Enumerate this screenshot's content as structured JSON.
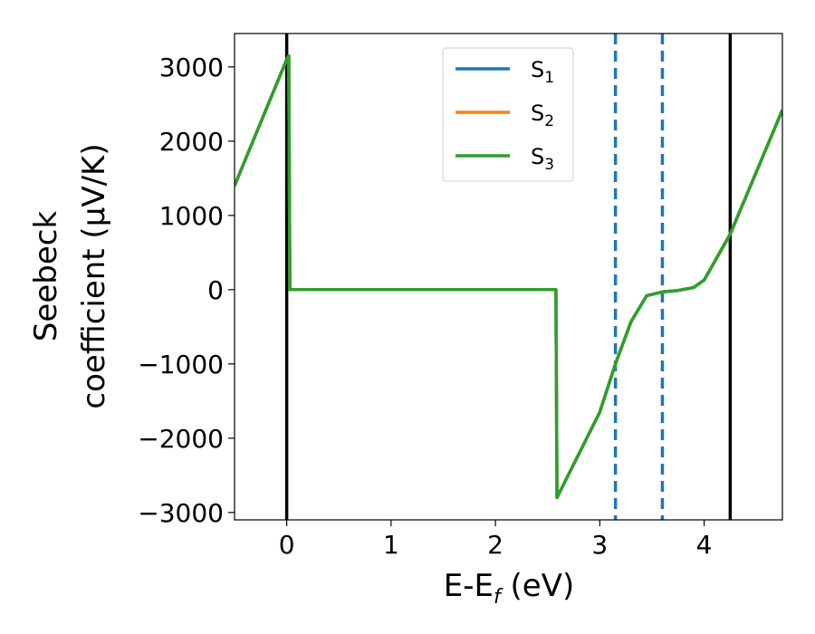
{
  "chart_data": {
    "type": "line",
    "xlabel_main": "E-E",
    "xlabel_sub": "f",
    "xlabel_unit": " (eV)",
    "ylabel_line1": "Seebeck",
    "ylabel_line2": "coefficient  (μV/K)",
    "xlim": [
      -0.5,
      4.75
    ],
    "ylim": [
      -3100,
      3450
    ],
    "xticks": [
      0,
      1,
      2,
      3,
      4
    ],
    "xtick_labels": [
      "0",
      "1",
      "2",
      "3",
      "4"
    ],
    "yticks": [
      -3000,
      -2000,
      -1000,
      0,
      1000,
      2000,
      3000
    ],
    "ytick_labels": [
      "−3000",
      "−2000",
      "−1000",
      "0",
      "1000",
      "2000",
      "3000"
    ],
    "grid": false,
    "legend_position": "upper-center",
    "series": [
      {
        "name": "S",
        "sub": "1",
        "color": "#1f77b4",
        "x": [
          -0.5,
          0.0,
          0.02,
          0.03,
          0.5,
          1.0,
          2.0,
          2.58,
          2.59,
          3.0,
          3.15,
          3.3,
          3.45,
          3.6,
          3.75,
          3.9,
          4.0,
          4.25,
          4.75
        ],
        "y": [
          1400,
          3100,
          3150,
          0,
          0,
          0,
          0,
          0,
          -2800,
          -1650,
          -1000,
          -430,
          -80,
          -30,
          -10,
          30,
          130,
          750,
          2420
        ]
      },
      {
        "name": "S",
        "sub": "2",
        "color": "#ff7f0e",
        "x": [
          -0.5,
          0.0,
          0.02,
          0.03,
          0.5,
          1.0,
          2.0,
          2.58,
          2.59,
          3.0,
          3.15,
          3.3,
          3.45,
          3.6,
          3.75,
          3.9,
          4.0,
          4.25,
          4.75
        ],
        "y": [
          1400,
          3100,
          3150,
          0,
          0,
          0,
          0,
          0,
          -2800,
          -1650,
          -1000,
          -430,
          -80,
          -30,
          -10,
          30,
          130,
          750,
          2420
        ]
      },
      {
        "name": "S",
        "sub": "3",
        "color": "#2ca02c",
        "x": [
          -0.5,
          0.0,
          0.02,
          0.03,
          0.5,
          1.0,
          2.0,
          2.58,
          2.59,
          3.0,
          3.15,
          3.3,
          3.45,
          3.6,
          3.75,
          3.9,
          4.0,
          4.25,
          4.75
        ],
        "y": [
          1400,
          3100,
          3150,
          0,
          0,
          0,
          0,
          0,
          -2800,
          -1650,
          -1000,
          -430,
          -80,
          -30,
          -10,
          30,
          130,
          750,
          2420
        ]
      }
    ],
    "vlines": [
      {
        "x": 0.0,
        "color": "#000000",
        "style": "solid"
      },
      {
        "x": 4.25,
        "color": "#000000",
        "style": "solid"
      },
      {
        "x": 3.15,
        "color": "#1f77b4",
        "style": "dashed"
      },
      {
        "x": 3.6,
        "color": "#1f77b4",
        "style": "dashed"
      }
    ]
  }
}
